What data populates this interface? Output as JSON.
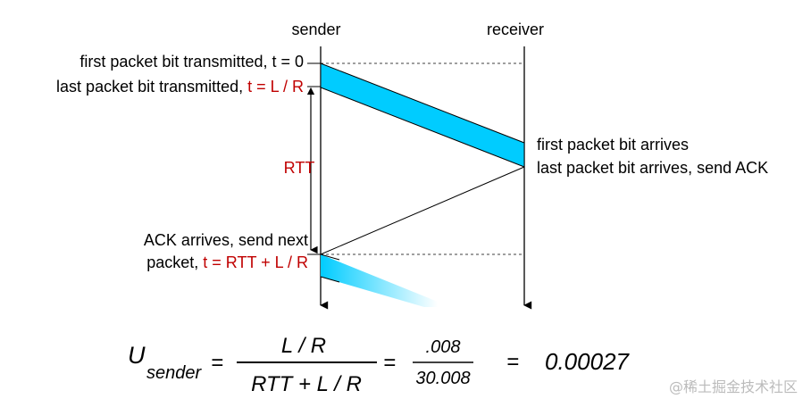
{
  "header": {
    "sender": "sender",
    "receiver": "receiver"
  },
  "events": {
    "first_tx_black": "first packet bit transmitted, t = 0",
    "last_tx_black": "last packet bit transmitted, ",
    "last_tx_red": "t = L / R",
    "rtt": "RTT",
    "first_arrive": "first packet bit arrives",
    "last_arrive": "last packet bit arrives, send ACK",
    "ack_line1": "ACK arrives, send next",
    "ack_line2_black": "packet, ",
    "ack_line2_red": "t = RTT + L / R"
  },
  "formula": {
    "u": "U",
    "subscript": "sender",
    "eq1": "=",
    "numerator": "L / R",
    "denominator": "RTT + L / R",
    "eq2": "=",
    "num_value": ".008",
    "den_value": "30.008",
    "eq3": "=",
    "result": "0.00027"
  },
  "watermark": "@稀土掘金技术社区",
  "colors": {
    "packet_fill": "#00ccff",
    "highlight_red": "#c00000",
    "line": "#000000"
  }
}
